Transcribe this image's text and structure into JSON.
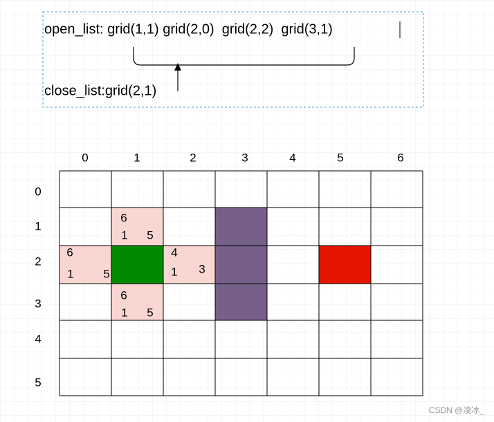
{
  "open_list": "open_list: grid(1,1) grid(2,0)  grid(2,2)  grid(3,1)",
  "close_list": "close_list:grid(2,1)",
  "column_labels": [
    "0",
    "1",
    "2",
    "3",
    "4",
    "5",
    "6"
  ],
  "row_labels": [
    "0",
    "1",
    "2",
    "3",
    "4",
    "5"
  ],
  "cells": [
    {
      "name": "grid(1,1)",
      "values": [
        6,
        1,
        5
      ]
    },
    {
      "name": "grid(2,0)",
      "values": [
        6,
        1,
        5
      ]
    },
    {
      "name": "grid(2,2)",
      "values": [
        4,
        1,
        3
      ]
    },
    {
      "name": "grid(3,1)",
      "values": [
        6,
        1,
        5
      ]
    }
  ],
  "watermark": "CSDN @凌冰_"
}
